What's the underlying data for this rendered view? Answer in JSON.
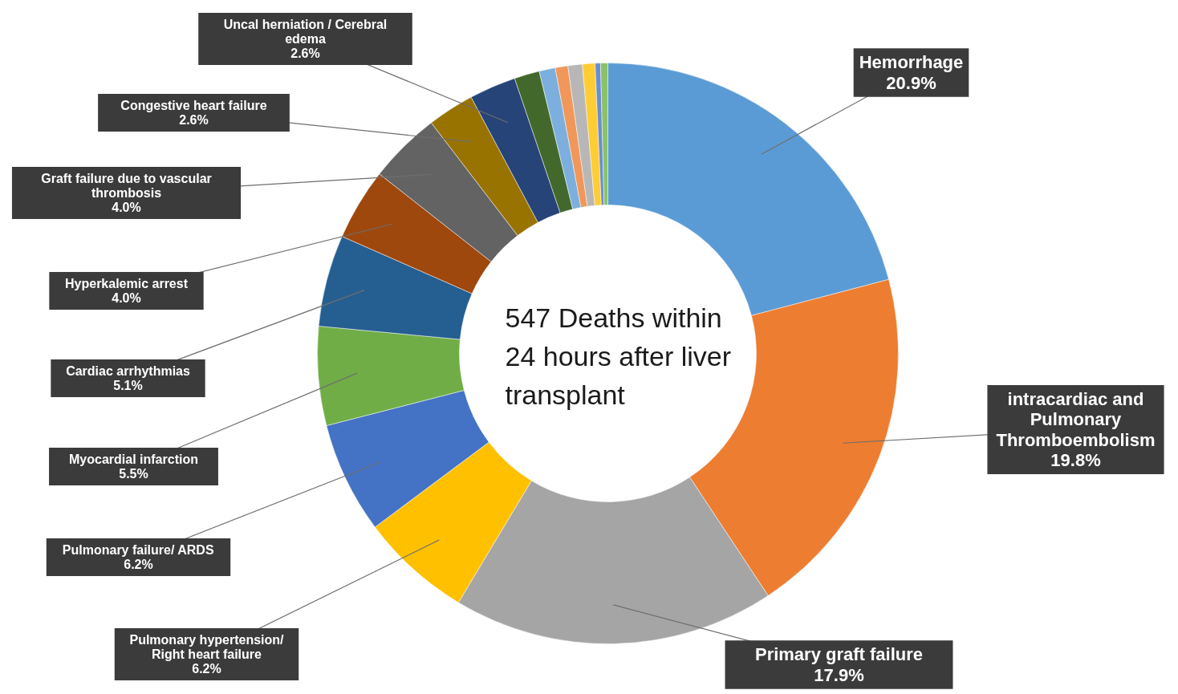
{
  "chart_data": {
    "type": "donut",
    "title": "547 Deaths within 24 hours after liver transplant",
    "categories": [
      "Hemorrhage",
      "intracardiac and Pulmonary Thromboembolism",
      "Primary graft failure",
      "Pulmonary hypertension/ Right heart failure",
      "Pulmonary failure/ ARDS",
      "Myocardial infarction",
      "Cardiac arrhythmias",
      "Hyperkalemic arrest",
      "Graft failure due to vascular thrombosis",
      "Congestive heart failure",
      "Uncal herniation / Cerebral edema",
      null,
      null,
      null,
      null,
      null,
      null,
      null
    ],
    "values": [
      20.9,
      19.8,
      17.9,
      6.2,
      6.2,
      5.5,
      5.1,
      4.0,
      4.0,
      2.6,
      2.6,
      1.4,
      0.9,
      0.7,
      0.8,
      0.7,
      0.3,
      0.4
    ],
    "colors": [
      "#5b9bd5",
      "#ed7d31",
      "#a5a5a5",
      "#ffc000",
      "#4472c4",
      "#70ad47",
      "#255e91",
      "#9e480e",
      "#636363",
      "#997300",
      "#264478",
      "#43682b",
      "#7cafdd",
      "#f1975a",
      "#b7b7b7",
      "#ffcd33",
      "#698ed0",
      "#8cc168"
    ],
    "value_labels": [
      "20.9%",
      "19.8%",
      "17.9%",
      "6.2%",
      "6.2%",
      "5.5%",
      "5.1%",
      "4.0%",
      "4.0%",
      "2.6%",
      "2.6%",
      null,
      null,
      null,
      null,
      null,
      null,
      null
    ]
  }
}
